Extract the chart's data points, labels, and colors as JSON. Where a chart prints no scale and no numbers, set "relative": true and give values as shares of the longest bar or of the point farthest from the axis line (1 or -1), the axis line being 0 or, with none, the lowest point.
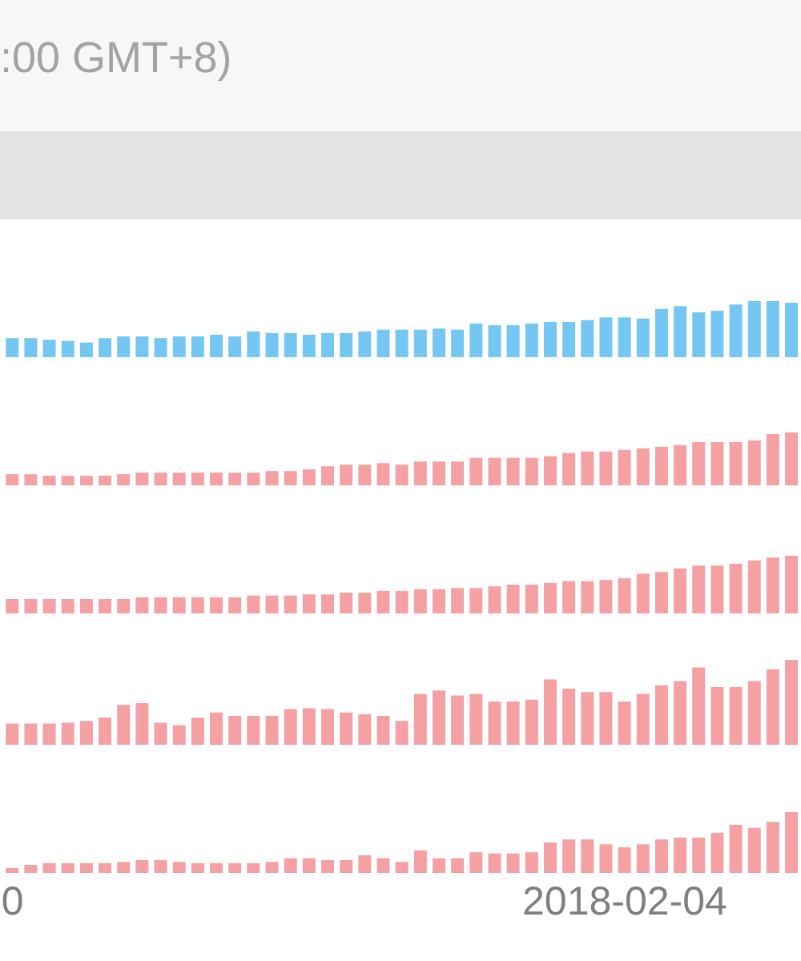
{
  "chart_data": [
    {
      "type": "bar",
      "title": ":00 GMT+8)",
      "relative": true,
      "tick_labels": false,
      "color": "#74c7f2",
      "categories": [
        "0",
        null,
        null,
        null,
        null,
        null,
        null,
        null,
        null,
        null,
        null,
        null,
        null,
        null,
        null,
        null,
        null,
        null,
        null,
        null,
        null,
        null,
        null,
        null,
        null,
        null,
        null,
        null,
        null,
        null,
        null,
        null,
        null,
        "2018-02-04",
        null,
        null,
        null,
        null,
        null,
        null,
        null,
        null,
        null
      ],
      "values": [
        0.34,
        0.34,
        0.31,
        0.29,
        0.26,
        0.34,
        0.37,
        0.37,
        0.34,
        0.37,
        0.37,
        0.4,
        0.37,
        0.46,
        0.43,
        0.43,
        0.4,
        0.43,
        0.43,
        0.46,
        0.49,
        0.49,
        0.49,
        0.51,
        0.49,
        0.6,
        0.57,
        0.57,
        0.6,
        0.63,
        0.63,
        0.66,
        0.71,
        0.71,
        0.69,
        0.86,
        0.91,
        0.8,
        0.83,
        0.94,
        1,
        1,
        0.97
      ]
    },
    {
      "type": "bar",
      "relative": true,
      "tick_labels": false,
      "color": "#f5a0a3",
      "categories": [
        "0",
        null,
        null,
        null,
        null,
        null,
        null,
        null,
        null,
        null,
        null,
        null,
        null,
        null,
        null,
        null,
        null,
        null,
        null,
        null,
        null,
        null,
        null,
        null,
        null,
        null,
        null,
        null,
        null,
        null,
        null,
        null,
        null,
        "2018-02-04",
        null,
        null,
        null,
        null,
        null,
        null,
        null,
        null,
        null
      ],
      "values": [
        0.21,
        0.21,
        0.18,
        0.18,
        0.18,
        0.18,
        0.21,
        0.24,
        0.24,
        0.24,
        0.24,
        0.24,
        0.24,
        0.24,
        0.27,
        0.27,
        0.3,
        0.36,
        0.39,
        0.39,
        0.42,
        0.39,
        0.45,
        0.45,
        0.45,
        0.52,
        0.52,
        0.52,
        0.52,
        0.55,
        0.61,
        0.64,
        0.64,
        0.67,
        0.7,
        0.73,
        0.76,
        0.82,
        0.82,
        0.82,
        0.85,
        0.97,
        1
      ]
    },
    {
      "type": "bar",
      "relative": true,
      "tick_labels": false,
      "color": "#f5a0a3",
      "categories": [
        "0",
        null,
        null,
        null,
        null,
        null,
        null,
        null,
        null,
        null,
        null,
        null,
        null,
        null,
        null,
        null,
        null,
        null,
        null,
        null,
        null,
        null,
        null,
        null,
        null,
        null,
        null,
        null,
        null,
        null,
        null,
        null,
        null,
        "2018-02-04",
        null,
        null,
        null,
        null,
        null,
        null,
        null,
        null,
        null
      ],
      "values": [
        0.25,
        0.25,
        0.25,
        0.25,
        0.25,
        0.25,
        0.25,
        0.28,
        0.28,
        0.28,
        0.28,
        0.28,
        0.28,
        0.31,
        0.31,
        0.31,
        0.33,
        0.33,
        0.36,
        0.36,
        0.39,
        0.39,
        0.42,
        0.42,
        0.44,
        0.44,
        0.47,
        0.5,
        0.5,
        0.53,
        0.56,
        0.56,
        0.58,
        0.61,
        0.69,
        0.72,
        0.78,
        0.83,
        0.83,
        0.86,
        0.92,
        0.97,
        1
      ]
    },
    {
      "type": "bar",
      "relative": true,
      "tick_labels": false,
      "color": "#f5a0a3",
      "categories": [
        "0",
        null,
        null,
        null,
        null,
        null,
        null,
        null,
        null,
        null,
        null,
        null,
        null,
        null,
        null,
        null,
        null,
        null,
        null,
        null,
        null,
        null,
        null,
        null,
        null,
        null,
        null,
        null,
        null,
        null,
        null,
        null,
        null,
        "2018-02-04",
        null,
        null,
        null,
        null,
        null,
        null,
        null,
        null,
        null
      ],
      "values": [
        0.25,
        0.25,
        0.25,
        0.26,
        0.28,
        0.32,
        0.47,
        0.49,
        0.26,
        0.23,
        0.32,
        0.38,
        0.34,
        0.34,
        0.34,
        0.42,
        0.43,
        0.42,
        0.38,
        0.36,
        0.34,
        0.28,
        0.6,
        0.64,
        0.58,
        0.6,
        0.51,
        0.51,
        0.53,
        0.77,
        0.66,
        0.62,
        0.62,
        0.51,
        0.6,
        0.7,
        0.75,
        0.91,
        0.68,
        0.68,
        0.75,
        0.89,
        1
      ]
    },
    {
      "type": "bar",
      "relative": true,
      "tick_labels": "x",
      "color": "#f5a0a3",
      "categories": [
        "0",
        null,
        null,
        null,
        null,
        null,
        null,
        null,
        null,
        null,
        null,
        null,
        null,
        null,
        null,
        null,
        null,
        null,
        null,
        null,
        null,
        null,
        null,
        null,
        null,
        null,
        null,
        null,
        null,
        null,
        null,
        null,
        null,
        "2018-02-04",
        null,
        null,
        null,
        null,
        null,
        null,
        null,
        null,
        null
      ],
      "values": [
        0.08,
        0.13,
        0.16,
        0.16,
        0.16,
        0.16,
        0.18,
        0.21,
        0.21,
        0.18,
        0.16,
        0.16,
        0.16,
        0.16,
        0.18,
        0.24,
        0.24,
        0.21,
        0.21,
        0.29,
        0.24,
        0.18,
        0.37,
        0.24,
        0.24,
        0.34,
        0.32,
        0.32,
        0.34,
        0.5,
        0.55,
        0.55,
        0.47,
        0.42,
        0.47,
        0.55,
        0.58,
        0.58,
        0.66,
        0.79,
        0.74,
        0.84,
        1
      ]
    }
  ]
}
